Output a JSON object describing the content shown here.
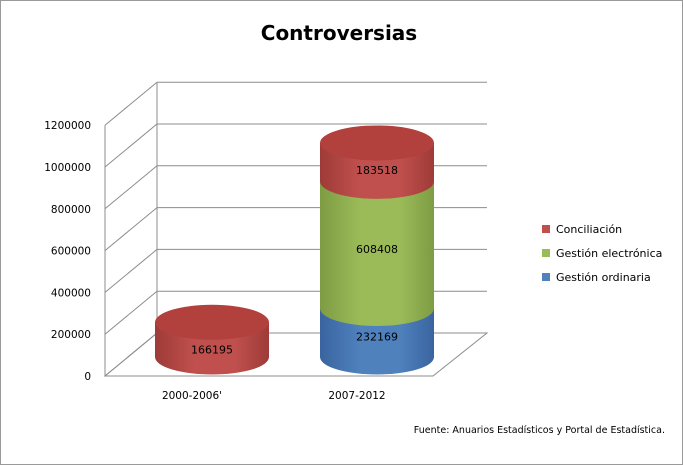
{
  "chart_data": {
    "type": "bar",
    "title": "Controversias",
    "categories": [
      "2000-2006'",
      "2007-2012"
    ],
    "series": [
      {
        "name": "Gestión ordinaria",
        "values": [
          null,
          232169
        ],
        "labels": [
          "",
          "232169"
        ],
        "color": "#4f81bd",
        "top_color": "#6d97cc",
        "dark_color": "#3a64a0"
      },
      {
        "name": "Gestión electrónica",
        "values": [
          null,
          608408
        ],
        "labels": [
          "",
          "608408"
        ],
        "color": "#9bbb59",
        "top_color": "#b3cd7a",
        "dark_color": "#7e9c43"
      },
      {
        "name": "Conciliación",
        "values": [
          166195,
          183518
        ],
        "labels": [
          "166195",
          "183518"
        ],
        "color": "#c0504d",
        "top_color": "#b2403d",
        "dark_color": "#9e3b38"
      }
    ],
    "legend_order": [
      "Conciliación",
      "Gestión electrónica",
      "Gestión ordinaria"
    ],
    "y_ticks": [
      "0",
      "200000",
      "400000",
      "600000",
      "800000",
      "1000000",
      "1200000"
    ],
    "ylim": [
      0,
      1200000
    ],
    "grid": true,
    "legend_position": "right"
  },
  "source_note": "Fuente: Anuarios Estadísticos y Portal de Estadística."
}
